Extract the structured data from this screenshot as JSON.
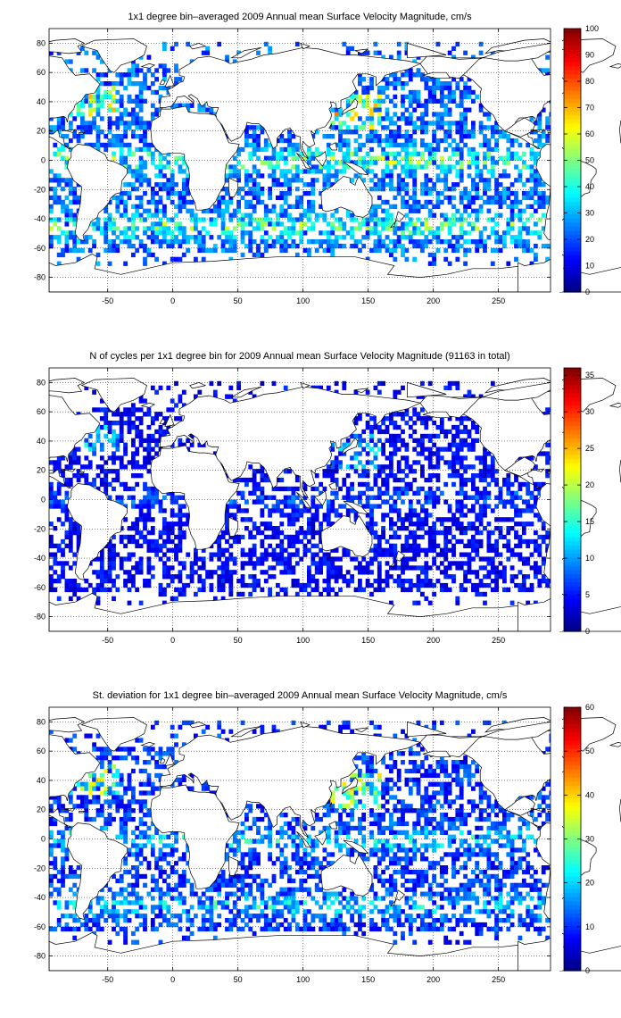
{
  "chart_data": [
    {
      "type": "heatmap",
      "title": "1x1 degree bin–averaged 2009 Annual mean Surface Velocity Magnitude, cm/s",
      "xlim": [
        -95,
        290
      ],
      "ylim": [
        -90,
        90
      ],
      "x_ticks": [
        -50,
        0,
        50,
        100,
        150,
        200,
        250
      ],
      "y_ticks": [
        80,
        60,
        40,
        20,
        0,
        -20,
        -40,
        -60,
        -80
      ],
      "grid": true,
      "colormap": "jet",
      "colorbar_range": [
        0,
        100
      ],
      "colorbar_ticks": [
        100,
        90,
        80,
        70,
        60,
        50,
        40,
        30,
        20,
        10,
        0
      ],
      "coverage": 0.55,
      "field": "velocity",
      "colorbar_location": "right"
    },
    {
      "type": "heatmap",
      "title": "N of cycles per 1x1 degree bin for 2009 Annual mean Surface Velocity Magnitude (91163 in total)",
      "xlim": [
        -95,
        290
      ],
      "ylim": [
        -90,
        90
      ],
      "x_ticks": [
        -50,
        0,
        50,
        100,
        150,
        200,
        250
      ],
      "y_ticks": [
        80,
        60,
        40,
        20,
        0,
        -20,
        -40,
        -60,
        -80
      ],
      "grid": true,
      "colormap": "jet",
      "colorbar_range": [
        0,
        36
      ],
      "colorbar_ticks": [
        35,
        30,
        25,
        20,
        15,
        10,
        5,
        0
      ],
      "coverage": 0.5,
      "field": "counts",
      "colorbar_location": "right"
    },
    {
      "type": "heatmap",
      "title": "St. deviation for 1x1 degree bin–averaged 2009 Annual mean Surface Velocity Magnitude, cm/s",
      "xlim": [
        -95,
        290
      ],
      "ylim": [
        -90,
        90
      ],
      "x_ticks": [
        -50,
        0,
        50,
        100,
        150,
        200,
        250
      ],
      "y_ticks": [
        80,
        60,
        40,
        20,
        0,
        -20,
        -40,
        -60,
        -80
      ],
      "grid": true,
      "colormap": "jet",
      "colorbar_range": [
        0,
        60
      ],
      "colorbar_ticks": [
        60,
        50,
        40,
        30,
        20,
        10,
        0
      ],
      "coverage": 0.5,
      "field": "stdev",
      "colorbar_location": "right"
    }
  ]
}
